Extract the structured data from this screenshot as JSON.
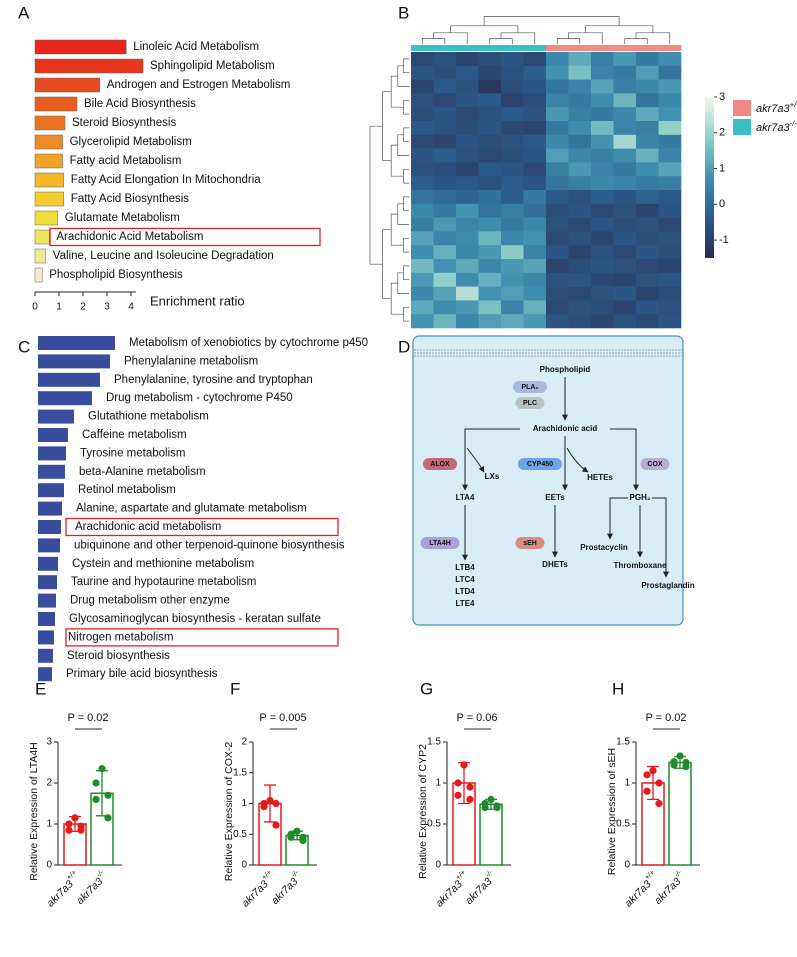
{
  "chart_data": [
    {
      "panel": "A",
      "type": "hbar",
      "xlabel": "Enrichment ratio",
      "categories": [
        "Linoleic Acid Metabolism",
        "Sphingolipid Metabolism",
        "Androgen and Estrogen Metabolism",
        "Bile Acid Biosynthesis",
        "Steroid Biosynthesis",
        "Glycerolipid Metabolism",
        "Fatty acid Metabolism",
        "Fatty Acid Elongation In Mitochondria",
        "Fatty Acid Biosynthesis",
        "Glutamate Metabolism",
        "Arachidonic Acid Metabolism",
        "Valine, Leucine and Isoleucine Degradation",
        "Phospholipid Biosynthesis"
      ],
      "values": [
        3.8,
        4.5,
        2.7,
        1.75,
        1.25,
        1.15,
        1.15,
        1.2,
        1.2,
        0.95,
        0.6,
        0.45,
        0.3
      ],
      "colors": [
        "#e8261e",
        "#e8361e",
        "#e84b1e",
        "#ea5f1f",
        "#ec7422",
        "#ef8b24",
        "#f1a126",
        "#f2b72a",
        "#f4cc2e",
        "#f0dc38",
        "#ece45a",
        "#eee896",
        "#f5efc8"
      ],
      "xlim": [
        0,
        4.2
      ],
      "xticks": [
        0,
        1,
        2,
        3,
        4
      ],
      "highlighted": [
        10
      ]
    },
    {
      "panel": "B",
      "type": "heatmap",
      "values": [
        [
          -0.8,
          -0.6,
          -0.9,
          -0.7,
          -0.5,
          -0.8,
          0.6,
          1.2,
          0.4,
          0.9,
          0.3,
          0.7
        ],
        [
          -0.5,
          -0.7,
          -0.4,
          -0.9,
          -0.6,
          -0.3,
          0.8,
          1.6,
          0.5,
          0.3,
          1.0,
          0.2
        ],
        [
          -0.9,
          -0.4,
          -0.6,
          -1.2,
          -0.7,
          -0.5,
          0.2,
          0.5,
          1.1,
          0.4,
          0.6,
          0.9
        ],
        [
          -0.6,
          -0.8,
          -0.5,
          -0.4,
          -0.9,
          -0.7,
          0.5,
          0.3,
          0.7,
          1.4,
          0.2,
          0.6
        ],
        [
          -0.7,
          -0.5,
          -0.8,
          -0.6,
          -0.4,
          -0.6,
          0.9,
          0.4,
          0.3,
          0.6,
          1.2,
          0.8
        ],
        [
          -0.4,
          -0.6,
          -0.7,
          -0.5,
          -0.8,
          -0.9,
          0.3,
          0.7,
          1.5,
          0.5,
          0.4,
          1.9
        ],
        [
          -0.8,
          -0.9,
          -0.5,
          -0.7,
          -0.6,
          -0.4,
          0.6,
          0.2,
          0.8,
          2.1,
          0.5,
          0.3
        ],
        [
          -0.5,
          -0.3,
          -0.6,
          -0.8,
          -0.7,
          -0.5,
          1.0,
          0.6,
          0.4,
          0.7,
          1.3,
          0.5
        ],
        [
          -0.6,
          -0.7,
          -0.9,
          -0.4,
          -0.5,
          -0.8,
          0.4,
          0.9,
          0.5,
          0.3,
          0.7,
          1.1
        ],
        [
          -0.3,
          -0.5,
          -0.4,
          -0.6,
          -0.3,
          -0.5,
          0.2,
          0.4,
          0.6,
          0.5,
          0.3,
          0.4
        ],
        [
          0.2,
          0.0,
          -0.2,
          0.1,
          -0.3,
          0.3,
          -0.4,
          -0.6,
          -0.3,
          -0.5,
          -0.2,
          -0.4
        ],
        [
          0.6,
          0.3,
          0.8,
          0.2,
          0.4,
          0.1,
          -0.7,
          -0.5,
          -0.8,
          -0.6,
          -0.9,
          -0.5
        ],
        [
          0.4,
          0.9,
          0.5,
          0.7,
          0.3,
          0.6,
          -0.6,
          -0.8,
          -0.5,
          -0.7,
          -0.6,
          -0.8
        ],
        [
          1.1,
          0.5,
          0.7,
          1.4,
          0.6,
          0.8,
          -0.8,
          -0.6,
          -0.9,
          -0.5,
          -0.7,
          -0.6
        ],
        [
          0.7,
          1.3,
          0.6,
          0.9,
          1.8,
          0.5,
          -0.5,
          -0.9,
          -0.6,
          -0.8,
          -0.5,
          -0.7
        ],
        [
          1.5,
          0.8,
          1.2,
          0.6,
          0.9,
          1.1,
          -0.9,
          -0.7,
          -0.5,
          -0.6,
          -0.8,
          -0.9
        ],
        [
          0.9,
          1.9,
          0.7,
          1.3,
          0.8,
          0.6,
          -0.6,
          -0.5,
          -0.8,
          -0.9,
          -0.6,
          -0.5
        ],
        [
          0.6,
          1.1,
          2.3,
          0.8,
          1.0,
          0.7,
          -0.7,
          -0.8,
          -0.6,
          -0.5,
          -0.9,
          -0.7
        ],
        [
          1.2,
          0.7,
          0.9,
          1.6,
          0.5,
          1.3,
          -0.8,
          -0.6,
          -0.7,
          -0.9,
          -0.5,
          -0.6
        ],
        [
          0.8,
          1.4,
          0.6,
          1.0,
          1.2,
          0.9,
          -0.5,
          -0.7,
          -0.9,
          -0.6,
          -0.8,
          -0.5
        ]
      ],
      "colorscale": [
        "#2a2c50",
        "#2b5a8a",
        "#3f8fb0",
        "#8fd0c8",
        "#f3f9ee"
      ],
      "vlim": [
        -1.5,
        3
      ],
      "colorbar_ticks": [
        3,
        2,
        1,
        0,
        -1
      ],
      "groups": [
        {
          "name": "akr7a3",
          "superscript": "+/+",
          "color": "#f08a84"
        },
        {
          "name": "akr7a3",
          "superscript": "-/-",
          "color": "#3cbfc4"
        }
      ],
      "column_groups": [
        1,
        1,
        1,
        1,
        1,
        1,
        0,
        0,
        0,
        0,
        0,
        0
      ]
    },
    {
      "panel": "C",
      "type": "hbar",
      "categories": [
        "Metabolism of xenobiotics by cytochrome p450",
        "Phenylalanine metabolism",
        "Phenylalanine, tyrosine and tryptophan",
        "Drug metabolism - cytochrome P450",
        "Glutathione metabolism",
        "Caffeine metabolism",
        "Tyrosine metabolism",
        "beta-Alanine metabolism",
        "Retinol metabolism",
        "Alanine, aspartate and glutamate metabolism",
        "Arachidonic acid metabolism",
        "ubiquinone and other terpenoid-quinone biosynthesis",
        "Cystein and methionine metabolism",
        "Taurine and hypotaurine metabolism",
        "Drug metabolism other enzyme",
        "Glycosaminoglycan biosynthesis - keratan sulfate",
        "Nitrogen metabolism",
        "Steroid biosynthesis",
        "Primary bile acid biosynthesis"
      ],
      "values": [
        77,
        72,
        62,
        54,
        36,
        30,
        28,
        27,
        26,
        24,
        23,
        22,
        20,
        19,
        18,
        17,
        16,
        15,
        14
      ],
      "color": "#3a4c9c",
      "highlighted": [
        10,
        16
      ]
    },
    {
      "panel": "E",
      "type": "bar_dots",
      "ylabel": "Relative Expression of LTA4H",
      "annotation": "P = 0.02",
      "categories": [
        {
          "name": "akr7a3",
          "superscript": "+/+"
        },
        {
          "name": "akr7a3",
          "superscript": "-/-"
        }
      ],
      "colors": [
        "#e41a1c",
        "#1f8a2a"
      ],
      "means": [
        1.0,
        1.75
      ],
      "errors": [
        0.18,
        0.55
      ],
      "points": [
        [
          1.15,
          1.0,
          0.95,
          0.85,
          0.85
        ],
        [
          2.35,
          2.0,
          1.7,
          1.6,
          1.15
        ]
      ],
      "ylim": [
        0,
        3
      ],
      "yticks": [
        0,
        1,
        2,
        3
      ]
    },
    {
      "panel": "F",
      "type": "bar_dots",
      "ylabel": "Relative Expression of COX-2",
      "annotation": "P = 0.005",
      "categories": [
        {
          "name": "akr7a3",
          "superscript": "+/+"
        },
        {
          "name": "akr7a3",
          "superscript": "-/-"
        }
      ],
      "colors": [
        "#e41a1c",
        "#1f8a2a"
      ],
      "means": [
        1.0,
        0.48
      ],
      "errors": [
        0.3,
        0.07
      ],
      "points": [
        [
          1.05,
          1.0,
          1.0,
          0.95,
          0.65
        ],
        [
          0.55,
          0.5,
          0.45,
          0.45,
          0.4
        ]
      ],
      "ylim": [
        0,
        2
      ],
      "yticks": [
        0,
        0.5,
        1,
        1.5,
        2
      ]
    },
    {
      "panel": "G",
      "type": "bar_dots",
      "ylabel": "Relative Expression of CYP2",
      "annotation": "P = 0.06",
      "categories": [
        {
          "name": "akr7a3",
          "superscript": "+/+"
        },
        {
          "name": "akr7a3",
          "superscript": "-/-"
        }
      ],
      "colors": [
        "#e41a1c",
        "#1f8a2a"
      ],
      "means": [
        1.0,
        0.74
      ],
      "errors": [
        0.25,
        0.06
      ],
      "points": [
        [
          1.22,
          1.0,
          0.95,
          0.85,
          0.8
        ],
        [
          0.8,
          0.75,
          0.72,
          0.7,
          0.7
        ]
      ],
      "ylim": [
        0,
        1.5
      ],
      "yticks": [
        0,
        0.5,
        1,
        1.5
      ]
    },
    {
      "panel": "H",
      "type": "bar_dots",
      "ylabel": "Relative Expression of sEH",
      "annotation": "P = 0.02",
      "categories": [
        {
          "name": "akr7a3",
          "superscript": "+/+"
        },
        {
          "name": "akr7a3",
          "superscript": "-/-"
        }
      ],
      "colors": [
        "#e41a1c",
        "#1f8a2a"
      ],
      "means": [
        1.0,
        1.25
      ],
      "errors": [
        0.2,
        0.07
      ],
      "points": [
        [
          1.15,
          1.1,
          1.0,
          0.9,
          0.75
        ],
        [
          1.33,
          1.26,
          1.25,
          1.22,
          1.2
        ]
      ],
      "ylim": [
        0,
        1.5
      ],
      "yticks": [
        0,
        0.5,
        1,
        1.5
      ]
    }
  ],
  "diagram": {
    "panel": "D",
    "nodes": [
      {
        "label": "Phospholipid"
      },
      {
        "label": "PLA₂"
      },
      {
        "label": "PLC"
      },
      {
        "label": "Arachidonic acid"
      },
      {
        "label": "ALOX"
      },
      {
        "label": "LXs"
      },
      {
        "label": "CYP450"
      },
      {
        "label": "HETEs"
      },
      {
        "label": "COX"
      },
      {
        "label": "LTA4"
      },
      {
        "label": "EETs"
      },
      {
        "label": "PGH₂"
      },
      {
        "label": "LTA4H"
      },
      {
        "label": "sEH"
      },
      {
        "label": "LTB4"
      },
      {
        "label": "LTC4"
      },
      {
        "label": "LTD4"
      },
      {
        "label": "LTE4"
      },
      {
        "label": "DHETs"
      },
      {
        "label": "Prostacyclin"
      },
      {
        "label": "Thromboxane"
      },
      {
        "label": "Prostaglandin"
      }
    ]
  }
}
